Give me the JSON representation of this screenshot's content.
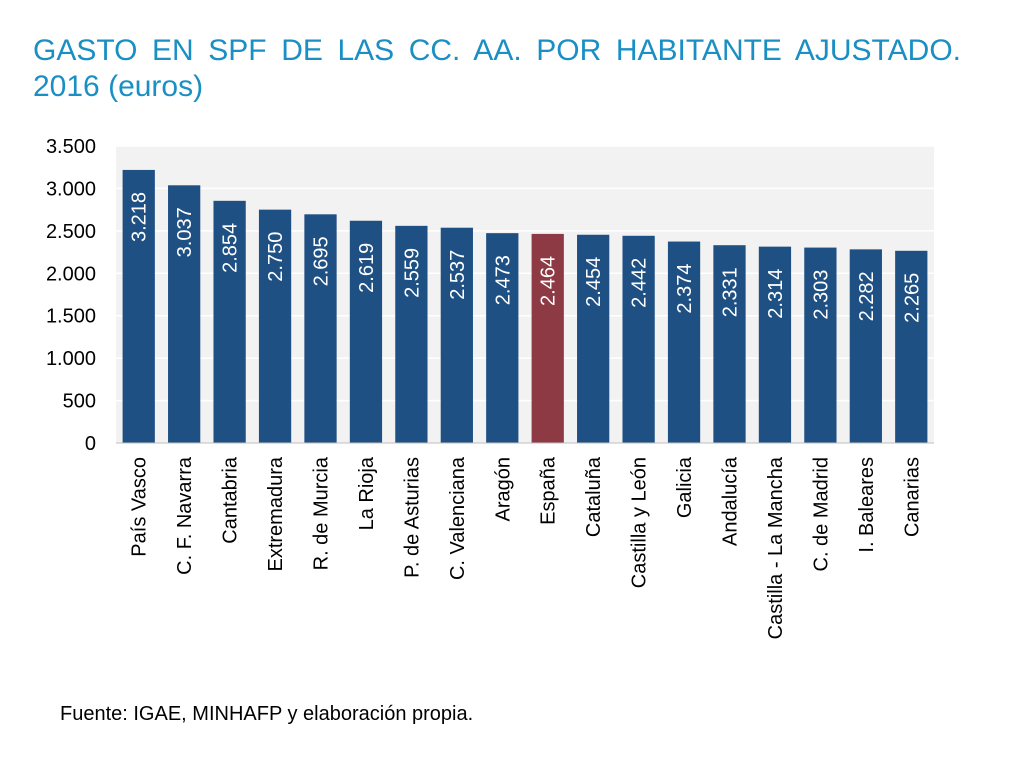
{
  "title": "GASTO EN SPF DE LAS CC. AA. POR HABITANTE AJUSTADO. 2016 (euros)",
  "source": "Fuente: IGAE, MINHAFP  y elaboración propia.",
  "colors": {
    "title": "#1a8fc4",
    "bar": "#1f5083",
    "highlight": "#8e3a45",
    "plot_bg": "#f2f2f2",
    "grid": "#ffffff"
  },
  "chart_data": {
    "type": "bar",
    "categories": [
      "País Vasco",
      "C. F. Navarra",
      "Cantabria",
      "Extremadura",
      "R. de Murcia",
      "La Rioja",
      "P. de Asturias",
      "C. Valenciana",
      "Aragón",
      "España",
      "Cataluña",
      "Castilla y León",
      "Galicia",
      "Andalucía",
      "Castilla - La Mancha",
      "C. de Madrid",
      "I. Baleares",
      "Canarias"
    ],
    "values": [
      3218,
      3037,
      2854,
      2750,
      2695,
      2619,
      2559,
      2537,
      2473,
      2464,
      2454,
      2442,
      2374,
      2331,
      2314,
      2303,
      2282,
      2265
    ],
    "value_labels": [
      "3.218",
      "3.037",
      "2.854",
      "2.750",
      "2.695",
      "2.619",
      "2.559",
      "2.537",
      "2.473",
      "2.464",
      "2.454",
      "2.442",
      "2.374",
      "2.331",
      "2.314",
      "2.303",
      "2.282",
      "2.265"
    ],
    "highlight_category": "España",
    "ylim": [
      0,
      3500
    ],
    "yticks": [
      0,
      500,
      1000,
      1500,
      2000,
      2500,
      3000,
      3500
    ],
    "ytick_labels": [
      "0",
      "500",
      "1.000",
      "1.500",
      "2.000",
      "2.500",
      "3.000",
      "3.500"
    ],
    "grid": true,
    "xlabel": "",
    "ylabel": ""
  }
}
